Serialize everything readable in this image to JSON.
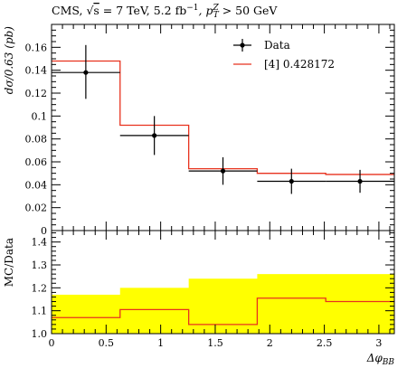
{
  "title_parts": {
    "prefix": "CMS, ",
    "sqrt": "√",
    "s": "s",
    "energy": " = 7 TeV, 5.2 fb",
    "lumi_exp": "−1",
    "cut_pre": ", p",
    "cut_sub": "T",
    "cut_sup": "Z",
    "cut_post": " > 50 GeV"
  },
  "chart_data": [
    {
      "type": "histogram",
      "panel": "main",
      "ylabel": "dσ/0.63 (pb)",
      "ylim": [
        0,
        0.18
      ],
      "yticks": [
        0,
        0.02,
        0.04,
        0.06,
        0.08,
        0.1,
        0.12,
        0.14,
        0.16
      ],
      "ytick_labels": [
        "0",
        "0.02",
        "0.04",
        "0.06",
        "0.08",
        "0.1",
        "0.12",
        "0.14",
        "0.16"
      ],
      "xlim": [
        0,
        3.14159
      ],
      "bin_edges": [
        0,
        0.628,
        1.257,
        1.885,
        2.513,
        3.14159
      ],
      "series": [
        {
          "name": "Data",
          "kind": "points",
          "color": "#000000",
          "x": [
            0.314,
            0.942,
            1.571,
            2.199,
            2.827
          ],
          "values": [
            0.138,
            0.083,
            0.052,
            0.043,
            0.043
          ],
          "err_low": [
            0.023,
            0.017,
            0.012,
            0.011,
            0.01
          ],
          "err_high": [
            0.024,
            0.017,
            0.012,
            0.011,
            0.01
          ]
        },
        {
          "name": "[4] 0.428172",
          "kind": "step",
          "color": "#e8321e",
          "values": [
            0.148,
            0.092,
            0.054,
            0.05,
            0.049
          ]
        }
      ],
      "legend": "top-right"
    },
    {
      "type": "ratio",
      "panel": "ratio",
      "ylabel": "MC/Data",
      "xlabel": "Δφ_BB",
      "xlabel_main": "Δφ",
      "xlabel_sub": "BB",
      "ylim": [
        1.0,
        1.45
      ],
      "yticks": [
        1.0,
        1.1,
        1.2,
        1.3,
        1.4
      ],
      "ytick_labels": [
        "1.0",
        "1.1",
        "1.2",
        "1.3",
        "1.4"
      ],
      "xticks": [
        0,
        0.5,
        1,
        1.5,
        2,
        2.5,
        3
      ],
      "xtick_labels": [
        "0",
        "0.5",
        "1",
        "1.5",
        "2",
        "2.5",
        "3"
      ],
      "bin_edges": [
        0,
        0.628,
        1.257,
        1.885,
        2.513,
        3.14159
      ],
      "band_color": "#ffff00",
      "band_upper": [
        1.17,
        1.2,
        1.24,
        1.26,
        1.26
      ],
      "band_lower": [
        1.0,
        1.0,
        1.0,
        1.0,
        1.0
      ],
      "ratio_values": [
        1.07,
        1.105,
        1.04,
        1.155,
        1.14
      ],
      "ratio_color": "#e8321e"
    }
  ]
}
